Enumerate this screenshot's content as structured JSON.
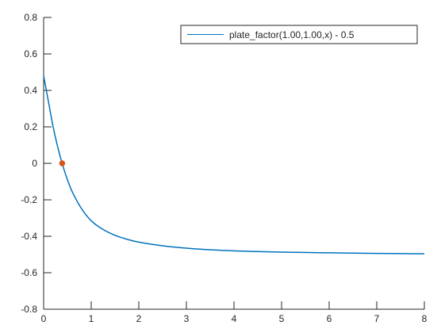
{
  "chart_data": {
    "type": "line",
    "title": "",
    "xlabel": "",
    "ylabel": "",
    "xlim": [
      0,
      8
    ],
    "ylim": [
      -0.8,
      0.8
    ],
    "x_ticks": [
      0,
      1,
      2,
      3,
      4,
      5,
      6,
      7,
      8
    ],
    "y_ticks": [
      -0.8,
      -0.6,
      -0.4,
      -0.2,
      0,
      0.2,
      0.4,
      0.6,
      0.8
    ],
    "x_tick_labels": [
      "0",
      "1",
      "2",
      "3",
      "4",
      "5",
      "6",
      "7",
      "8"
    ],
    "y_tick_labels": [
      "-0.8",
      "-0.6",
      "-0.4",
      "-0.2",
      "0",
      "0.2",
      "0.4",
      "0.6",
      "0.8"
    ],
    "grid": false,
    "legend_position": "top-right",
    "series": [
      {
        "name": "plate_factor(1.00,1.00,x) - 0.5",
        "color": "#0072bd",
        "x": [
          0,
          0.1,
          0.2,
          0.3,
          0.4,
          0.5,
          0.6,
          0.8,
          1.0,
          1.2,
          1.5,
          1.8,
          2.0,
          2.5,
          3.0,
          3.5,
          4.0,
          5.0,
          6.0,
          7.0,
          8.0
        ],
        "y": [
          0.48,
          0.34,
          0.2,
          0.085,
          -0.01,
          -0.09,
          -0.155,
          -0.25,
          -0.315,
          -0.355,
          -0.395,
          -0.42,
          -0.432,
          -0.452,
          -0.465,
          -0.474,
          -0.48,
          -0.487,
          -0.491,
          -0.494,
          -0.496
        ]
      }
    ],
    "points": [
      {
        "x": 0.39,
        "y": 0,
        "color": "#d95319"
      }
    ]
  }
}
